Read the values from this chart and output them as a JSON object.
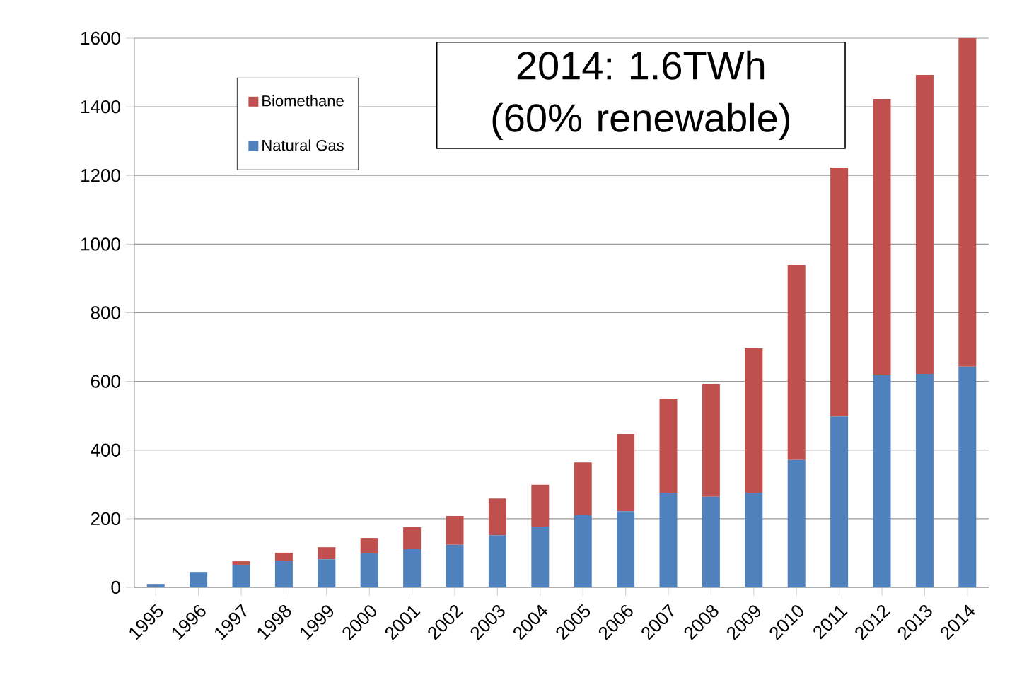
{
  "chart_data": {
    "type": "bar",
    "stacked": true,
    "categories": [
      "1995",
      "1996",
      "1997",
      "1998",
      "1999",
      "2000",
      "2001",
      "2002",
      "2003",
      "2004",
      "2005",
      "2006",
      "2007",
      "2008",
      "2009",
      "2010",
      "2011",
      "2012",
      "2013",
      "2014"
    ],
    "series": [
      {
        "name": "Natural Gas",
        "color": "#4f81bd",
        "values": [
          10,
          45,
          66,
          78,
          82,
          99,
          111,
          124,
          152,
          177,
          210,
          222,
          276,
          264,
          276,
          371,
          498,
          618,
          622,
          643
        ]
      },
      {
        "name": "Biomethane",
        "color": "#c0504d",
        "values": [
          0,
          0,
          10,
          23,
          35,
          45,
          64,
          84,
          107,
          122,
          154,
          225,
          274,
          329,
          420,
          568,
          725,
          805,
          871,
          957
        ]
      }
    ],
    "ylim": [
      0,
      1600
    ],
    "yticks": [
      0,
      200,
      400,
      600,
      800,
      1000,
      1200,
      1400,
      1600
    ],
    "grid": "y",
    "legend": "top left",
    "annotations": [
      "2014: 1.6TWh (60% renewable)"
    ]
  }
}
